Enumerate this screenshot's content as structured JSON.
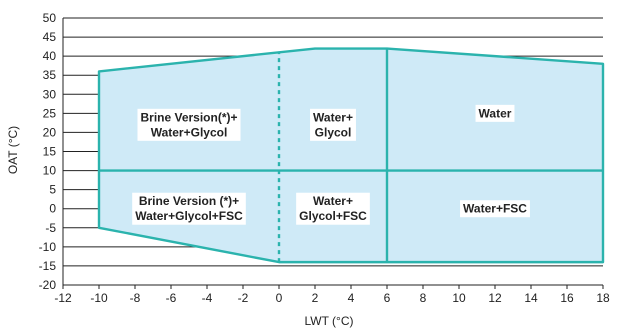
{
  "chart_data": {
    "type": "area",
    "xlabel": "LWT (°C)",
    "ylabel": "OAT (°C)",
    "xlim": [
      -12,
      18
    ],
    "ylim": [
      -20,
      50
    ],
    "x_ticks": [
      -12,
      -10,
      -8,
      -6,
      -4,
      -2,
      0,
      2,
      4,
      6,
      8,
      10,
      12,
      14,
      16,
      18
    ],
    "y_ticks": [
      -20,
      -15,
      -10,
      -5,
      0,
      5,
      10,
      15,
      20,
      25,
      30,
      35,
      40,
      45,
      50
    ],
    "grid": "horizontal",
    "envelope": [
      {
        "x": -10,
        "y": 36
      },
      {
        "x": 2,
        "y": 42
      },
      {
        "x": 6,
        "y": 42
      },
      {
        "x": 18,
        "y": 38
      },
      {
        "x": 18,
        "y": -14
      },
      {
        "x": 0,
        "y": -14
      },
      {
        "x": -10,
        "y": -5
      }
    ],
    "dividers": [
      {
        "orientation": "horizontal",
        "at": 10,
        "from": -10,
        "to": 18,
        "style": "solid"
      },
      {
        "orientation": "vertical",
        "at": 0,
        "from": -14,
        "to": 41.2,
        "style": "dashed"
      },
      {
        "orientation": "vertical",
        "at": 6,
        "from": -14,
        "to": 42,
        "style": "solid"
      }
    ],
    "regions": [
      {
        "lines": [
          "Brine Version(*)+",
          "Water+Glycol"
        ],
        "x": -5,
        "y": 22
      },
      {
        "lines": [
          "Water+",
          "Glycol"
        ],
        "x": 3,
        "y": 22
      },
      {
        "lines": [
          "Water"
        ],
        "x": 12,
        "y": 25
      },
      {
        "lines": [
          "Brine Version (*)+",
          "Water+Glycol+FSC"
        ],
        "x": -5,
        "y": 0
      },
      {
        "lines": [
          "Water+",
          "Glycol+FSC"
        ],
        "x": 3,
        "y": 0
      },
      {
        "lines": [
          "Water+FSC"
        ],
        "x": 12,
        "y": 0
      }
    ]
  }
}
